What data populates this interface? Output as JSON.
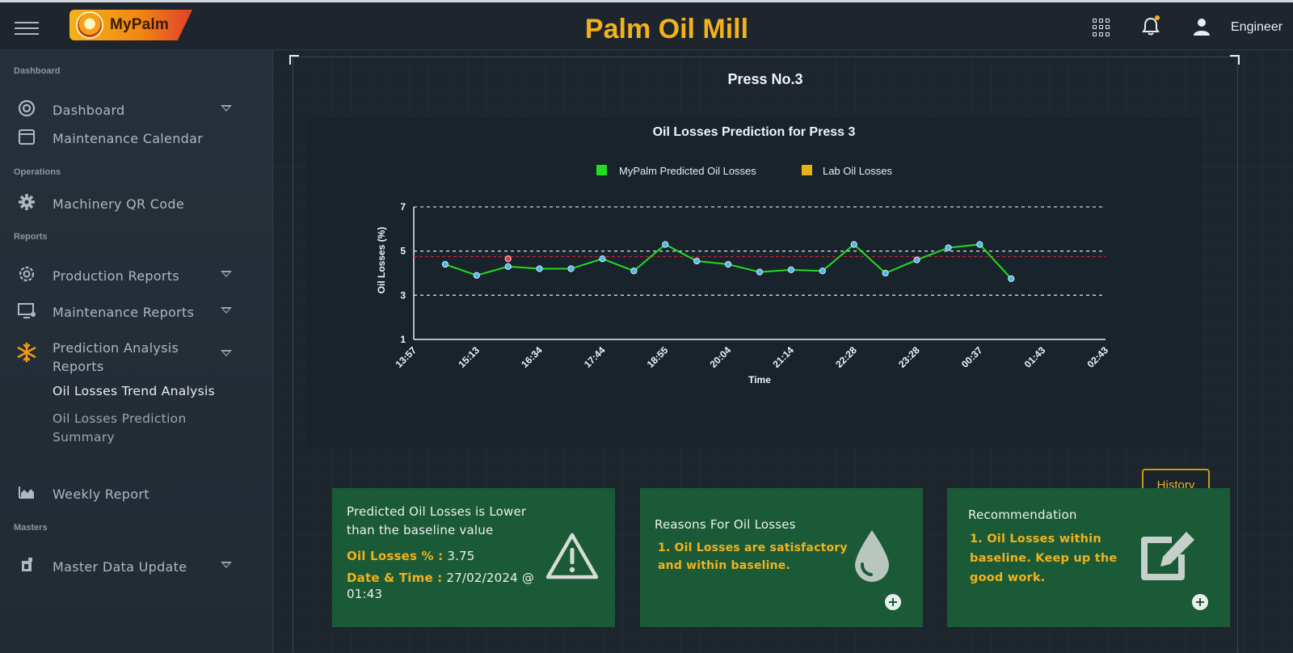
{
  "header": {
    "logo_text": "MyPalm",
    "title": "Palm Oil Mill",
    "user": "Engineer"
  },
  "sidebar": {
    "sections": {
      "dashboard": "Dashboard",
      "operations": "Operations",
      "reports": "Reports",
      "masters": "Masters"
    },
    "items": {
      "dashboard": "Dashboard",
      "calendar": "Maintenance Calendar",
      "qr": "Machinery QR Code",
      "production": "Production Reports",
      "maintenance": "Maintenance Reports",
      "prediction_1": "Prediction Analysis",
      "prediction_2": "Reports",
      "trend": "Oil Losses Trend Analysis",
      "summary_1": "Oil Losses Prediction",
      "summary_2": "Summary",
      "weekly": "Weekly Report",
      "master": "Master Data Update"
    }
  },
  "main": {
    "press_title": "Press No.3",
    "history_label": "History"
  },
  "chart_data": {
    "type": "line",
    "title": "Oil Losses Prediction for Press 3",
    "xlabel": "Time",
    "ylabel": "Oil Losses (%)",
    "ylim": [
      1,
      7
    ],
    "yticks": [
      1,
      3,
      5,
      7
    ],
    "xticks": [
      "13:57",
      "15:13",
      "16:34",
      "17:44",
      "18:55",
      "20:04",
      "21:14",
      "22:28",
      "23:28",
      "00:37",
      "01:43",
      "02:43"
    ],
    "baseline": 4.75,
    "series": [
      {
        "name": "MyPalm Predicted Oil Losses",
        "color": "#22dd22",
        "values": [
          4.4,
          3.9,
          4.3,
          4.2,
          4.2,
          4.65,
          4.1,
          5.3,
          4.55,
          4.4,
          4.05,
          4.15,
          4.1,
          5.3,
          4.0,
          4.6,
          5.15,
          5.3,
          3.75
        ]
      },
      {
        "name": "Lab Oil Losses",
        "color": "#e6b317",
        "values": [
          4.65
        ]
      }
    ]
  },
  "cards": {
    "prediction": {
      "line1": "Predicted Oil Losses is Lower",
      "line2": "than the baseline value",
      "losses_label": "Oil Losses % :",
      "losses_value": "3.75",
      "datetime_label": "Date & Time :",
      "datetime_value": "27/02/2024 @",
      "datetime_value2": "01:43"
    },
    "reasons": {
      "title": "Reasons For Oil Losses",
      "line1": "1. Oil Losses are satisfactory",
      "line2": "and within baseline."
    },
    "recommendation": {
      "title": "Recommendation",
      "line1": "1. Oil Losses within",
      "line2": "baseline. Keep up the",
      "line3": "good work."
    }
  }
}
